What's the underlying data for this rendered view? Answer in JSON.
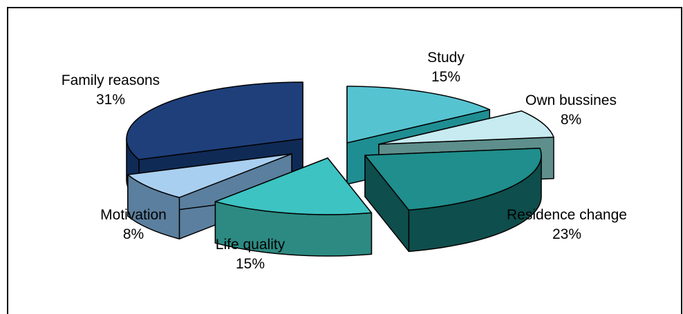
{
  "chart_data": {
    "type": "pie",
    "title": "",
    "style": "3d-exploded",
    "slices": [
      {
        "label": "Study",
        "value": 15,
        "value_label": "15%",
        "color": "#56C3D1",
        "side_color": "#1F8E92"
      },
      {
        "label": "Own bussines",
        "value": 8,
        "value_label": "8%",
        "color": "#C7EBF1",
        "side_color": "#5E8F8C"
      },
      {
        "label": "Residence change",
        "value": 23,
        "value_label": "23%",
        "color": "#1F8E8C",
        "side_color": "#0E4E4C"
      },
      {
        "label": "Life quality",
        "value": 15,
        "value_label": "15%",
        "color": "#3DC3C2",
        "side_color": "#2D8A82"
      },
      {
        "label": "Motivation",
        "value": 8,
        "value_label": "8%",
        "color": "#A9CFF0",
        "side_color": "#5B7F9E"
      },
      {
        "label": "Family reasons",
        "value": 31,
        "value_label": "31%",
        "color": "#1E3F7A",
        "side_color": "#0F2A55"
      }
    ]
  }
}
